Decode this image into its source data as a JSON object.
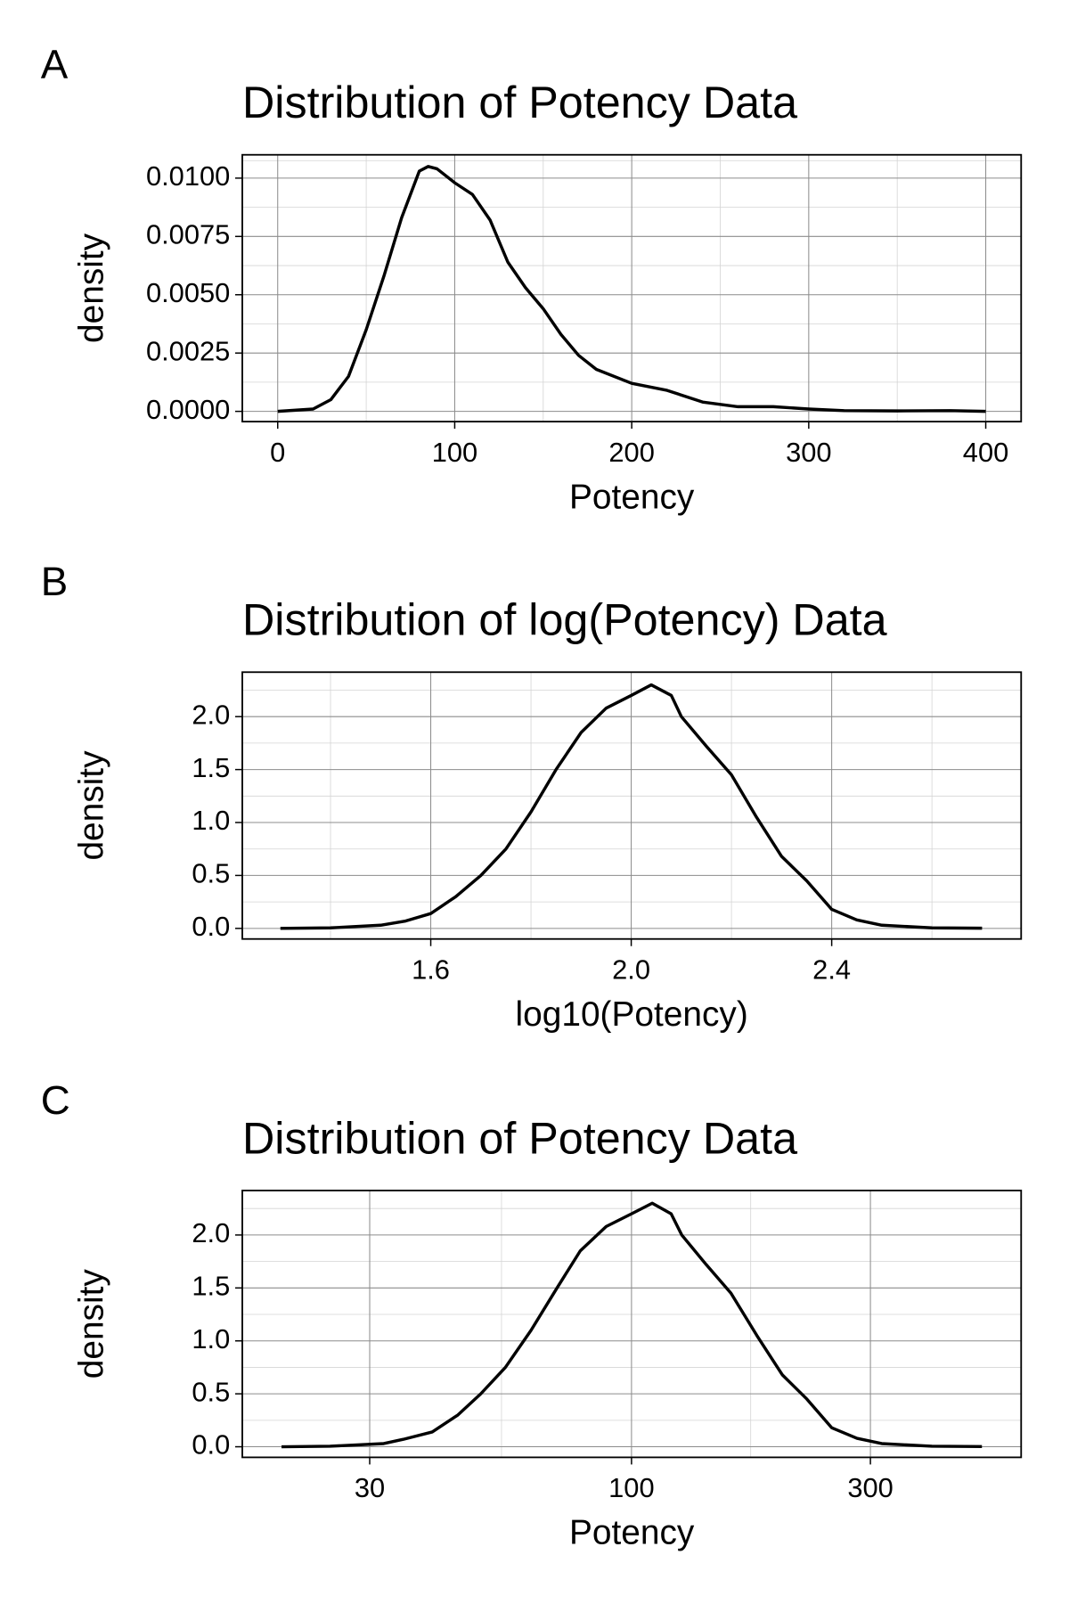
{
  "chart_data": [
    {
      "type": "line",
      "panel_label": "A",
      "title": "Distribution of Potency Data",
      "x_label": "Potency",
      "y_label": "density",
      "color": "#000000",
      "grid": true,
      "x": [
        0,
        20,
        30,
        40,
        50,
        60,
        70,
        80,
        85,
        90,
        100,
        110,
        120,
        130,
        140,
        150,
        160,
        170,
        180,
        200,
        220,
        240,
        260,
        280,
        300,
        320,
        350,
        380,
        400
      ],
      "values": [
        0,
        0.0001,
        0.0005,
        0.0015,
        0.0035,
        0.0058,
        0.0083,
        0.0103,
        0.0105,
        0.0104,
        0.0098,
        0.0093,
        0.0082,
        0.0064,
        0.0053,
        0.0044,
        0.0033,
        0.0024,
        0.0018,
        0.0012,
        0.0009,
        0.0004,
        0.0002,
        0.0002,
        0.0001,
        3e-05,
        2e-05,
        3e-05,
        0
      ],
      "xlim": [
        -20,
        420
      ],
      "ylim": [
        -0.00044,
        0.011
      ],
      "xticks": [
        0,
        100,
        200,
        300,
        400
      ],
      "yticks": [
        {
          "value": 0,
          "label": "0.0000"
        },
        {
          "value": 0.0025,
          "label": "0.0025"
        },
        {
          "value": 0.005,
          "label": "0.0050"
        },
        {
          "value": 0.0075,
          "label": "0.0075"
        },
        {
          "value": 0.01,
          "label": "0.0100"
        }
      ],
      "xminor": [
        50,
        150,
        250,
        350
      ],
      "yminor": [
        0.00125,
        0.00375,
        0.00625,
        0.00875,
        0.01075
      ]
    },
    {
      "type": "line",
      "panel_label": "B",
      "title": "Distribution of log(Potency) Data",
      "x_label": "log10(Potency)",
      "y_label": "density",
      "color": "#000000",
      "grid": true,
      "x": [
        1.3,
        1.4,
        1.5,
        1.55,
        1.6,
        1.65,
        1.7,
        1.75,
        1.8,
        1.85,
        1.9,
        1.95,
        2.0,
        2.04,
        2.08,
        2.1,
        2.15,
        2.2,
        2.25,
        2.3,
        2.35,
        2.4,
        2.45,
        2.5,
        2.6,
        2.7
      ],
      "values": [
        0,
        0.005,
        0.03,
        0.07,
        0.14,
        0.3,
        0.5,
        0.75,
        1.1,
        1.5,
        1.85,
        2.08,
        2.2,
        2.3,
        2.2,
        2.0,
        1.72,
        1.45,
        1.05,
        0.68,
        0.45,
        0.18,
        0.08,
        0.03,
        0.005,
        0.002
      ],
      "xlim": [
        1.224,
        2.778
      ],
      "ylim": [
        -0.1,
        2.42
      ],
      "xticks": [
        1.6,
        {
          "value": 2.0,
          "label": "2.0"
        },
        2.4
      ],
      "yticks": [
        {
          "value": 0,
          "label": "0.0"
        },
        0.5,
        {
          "value": 1,
          "label": "1.0"
        },
        1.5,
        {
          "value": 2,
          "label": "2.0"
        }
      ],
      "xminor": [
        1.4,
        1.8,
        2.2,
        2.6
      ],
      "yminor": [
        0.25,
        0.75,
        1.25,
        1.75,
        2.25
      ]
    },
    {
      "type": "line",
      "panel_label": "C",
      "title": "Distribution of Potency Data",
      "x_label": "Potency",
      "y_label": "density",
      "color": "#000000",
      "grid": true,
      "xscale": "log",
      "x": [
        20,
        25,
        32,
        35,
        40,
        45,
        50,
        56,
        63,
        71,
        79,
        89,
        100,
        110,
        120,
        126,
        141,
        158,
        178,
        200,
        224,
        251,
        282,
        316,
        398,
        501
      ],
      "values": [
        0,
        0.005,
        0.03,
        0.07,
        0.14,
        0.3,
        0.5,
        0.75,
        1.1,
        1.5,
        1.85,
        2.08,
        2.2,
        2.3,
        2.2,
        2.0,
        1.72,
        1.45,
        1.05,
        0.68,
        0.45,
        0.18,
        0.08,
        0.03,
        0.005,
        0.002
      ],
      "xlim": [
        16.7,
        600
      ],
      "ylim": [
        -0.1,
        2.42
      ],
      "xticks": [
        30,
        100,
        300
      ],
      "yticks": [
        {
          "value": 0,
          "label": "0.0"
        },
        0.5,
        {
          "value": 1,
          "label": "1.0"
        },
        1.5,
        {
          "value": 2,
          "label": "2.0"
        }
      ],
      "xminor": [
        55,
        173
      ],
      "yminor": [
        0.25,
        0.75,
        1.25,
        1.75,
        2.25
      ]
    }
  ]
}
